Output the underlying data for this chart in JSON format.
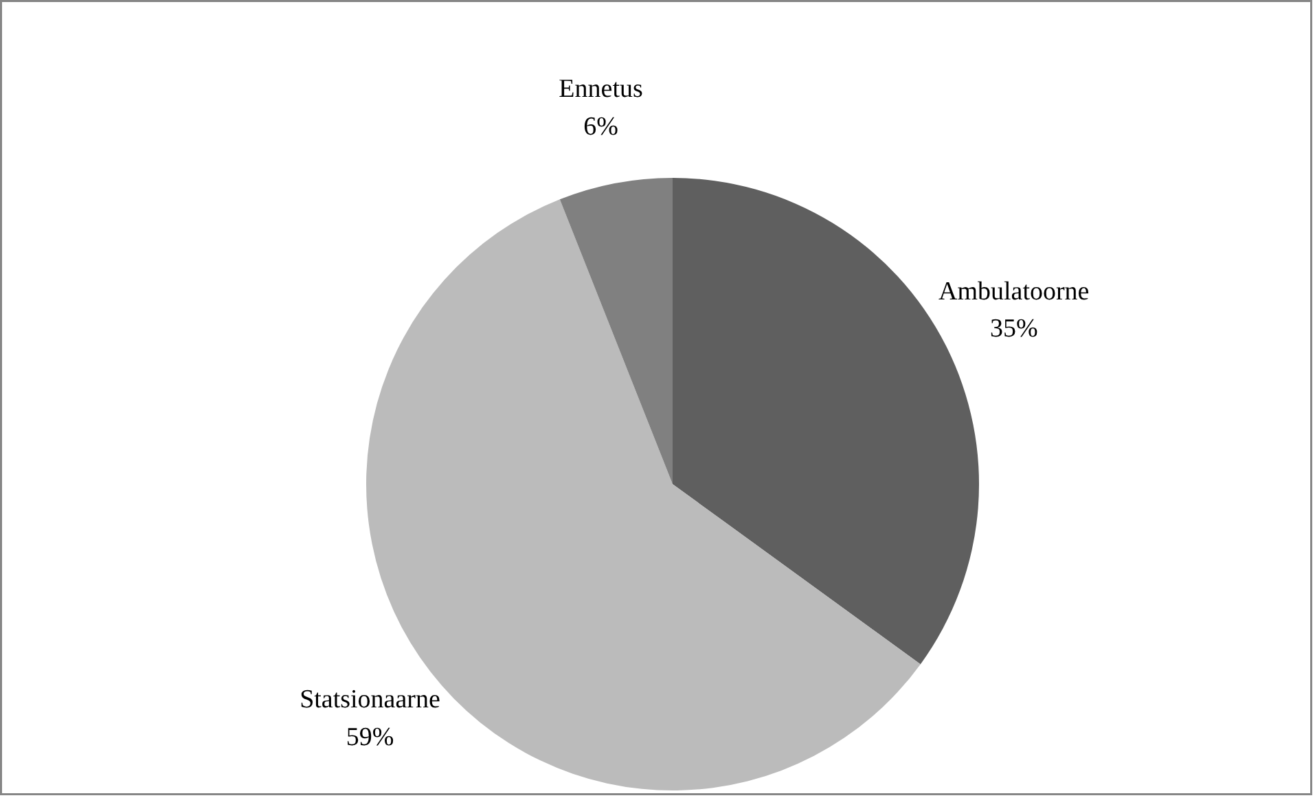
{
  "chart_data": {
    "type": "pie",
    "categories": [
      "Ambulatoorne",
      "Statsionaarne",
      "Ennetus"
    ],
    "values": [
      35,
      59,
      6
    ],
    "colors": [
      "#5f5f5f",
      "#bbbbbb",
      "#808080"
    ],
    "value_labels": [
      "35%",
      "59%",
      "6%"
    ],
    "legend": false
  }
}
